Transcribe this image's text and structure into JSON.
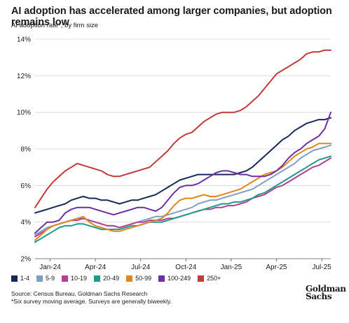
{
  "title": "AI adoption has accelerated among larger companies, but adoption remains low",
  "subtitle": "AI adoption rate*, by firm size",
  "source": "Source: Census Bureau, Goldman Sachs Research",
  "footnote": "*Six survey moving average. Surveys are generally biweekly.",
  "logo": {
    "line1": "Goldman",
    "line2": "Sachs"
  },
  "chart_data": {
    "type": "line",
    "ylim": [
      2,
      14
    ],
    "yticks": [
      "2%",
      "4%",
      "6%",
      "8%",
      "10%",
      "12%",
      "14%"
    ],
    "ytick_values": [
      2,
      4,
      6,
      8,
      10,
      12,
      14
    ],
    "xlim": [
      0,
      19.6
    ],
    "xticks": [
      "Jan-24",
      "Apr-24",
      "Jul-24",
      "Oct-24",
      "Jan-25",
      "Apr-25",
      "Jul-25"
    ],
    "xtick_positions": [
      1,
      4,
      7,
      10,
      13,
      16,
      19
    ],
    "grid": "horizontal",
    "legend_position": "bottom-left",
    "x": [
      0,
      0.4,
      0.8,
      1.2,
      1.6,
      2.0,
      2.4,
      2.8,
      3.2,
      3.6,
      4.0,
      4.4,
      4.8,
      5.2,
      5.6,
      6.0,
      6.4,
      6.8,
      7.2,
      7.6,
      8.0,
      8.4,
      8.8,
      9.2,
      9.6,
      10.0,
      10.4,
      10.8,
      11.2,
      11.6,
      12.0,
      12.4,
      12.8,
      13.2,
      13.6,
      14.0,
      14.4,
      14.8,
      15.2,
      15.6,
      16.0,
      16.4,
      16.8,
      17.2,
      17.6,
      18.0,
      18.4,
      18.8,
      19.2,
      19.6
    ],
    "series": [
      {
        "name": "1-4",
        "color": "#172a57",
        "values": [
          4.5,
          4.6,
          4.7,
          4.8,
          4.9,
          5.0,
          5.2,
          5.3,
          5.4,
          5.3,
          5.3,
          5.2,
          5.2,
          5.1,
          5.0,
          5.1,
          5.2,
          5.2,
          5.3,
          5.4,
          5.5,
          5.7,
          5.9,
          6.1,
          6.3,
          6.4,
          6.5,
          6.6,
          6.6,
          6.6,
          6.6,
          6.6,
          6.6,
          6.6,
          6.7,
          6.8,
          7.0,
          7.3,
          7.6,
          7.9,
          8.2,
          8.5,
          8.7,
          9.0,
          9.2,
          9.4,
          9.5,
          9.6,
          9.6,
          9.7
        ]
      },
      {
        "name": "5-9",
        "color": "#7d9ec9",
        "values": [
          3.3,
          3.5,
          3.7,
          3.8,
          3.9,
          4.0,
          4.1,
          4.2,
          4.2,
          4.1,
          4.0,
          3.9,
          3.8,
          3.8,
          3.7,
          3.8,
          3.9,
          4.0,
          4.1,
          4.2,
          4.3,
          4.3,
          4.4,
          4.5,
          4.6,
          4.7,
          4.8,
          5.0,
          5.1,
          5.2,
          5.2,
          5.3,
          5.4,
          5.5,
          5.6,
          5.7,
          5.8,
          6.0,
          6.2,
          6.4,
          6.6,
          6.8,
          7.0,
          7.2,
          7.5,
          7.7,
          7.9,
          8.0,
          8.1,
          8.2
        ]
      },
      {
        "name": "10-19",
        "color": "#b23f93",
        "values": [
          3.2,
          3.4,
          3.6,
          3.8,
          3.9,
          4.0,
          4.1,
          4.1,
          4.2,
          4.1,
          4.0,
          3.9,
          3.8,
          3.8,
          3.7,
          3.8,
          3.9,
          4.0,
          4.0,
          4.1,
          4.1,
          4.1,
          4.2,
          4.2,
          4.3,
          4.4,
          4.5,
          4.6,
          4.7,
          4.7,
          4.8,
          4.8,
          4.9,
          4.9,
          5.0,
          5.1,
          5.3,
          5.4,
          5.5,
          5.7,
          5.9,
          6.0,
          6.2,
          6.4,
          6.6,
          6.8,
          7.0,
          7.1,
          7.3,
          7.5
        ]
      },
      {
        "name": "20-49",
        "color": "#1e9b8a",
        "values": [
          2.9,
          3.1,
          3.3,
          3.5,
          3.7,
          3.8,
          3.8,
          3.9,
          3.9,
          3.8,
          3.7,
          3.6,
          3.6,
          3.6,
          3.6,
          3.7,
          3.8,
          3.8,
          3.9,
          4.0,
          4.0,
          4.0,
          4.1,
          4.2,
          4.3,
          4.4,
          4.5,
          4.6,
          4.7,
          4.8,
          4.9,
          5.0,
          5.0,
          5.1,
          5.1,
          5.2,
          5.3,
          5.5,
          5.6,
          5.8,
          6.0,
          6.2,
          6.4,
          6.6,
          6.8,
          7.0,
          7.2,
          7.4,
          7.5,
          7.6
        ]
      },
      {
        "name": "50-99",
        "color": "#e0861c",
        "values": [
          3.0,
          3.3,
          3.6,
          3.8,
          3.9,
          4.0,
          4.1,
          4.2,
          4.3,
          4.0,
          3.8,
          3.7,
          3.6,
          3.5,
          3.5,
          3.6,
          3.7,
          3.8,
          3.9,
          4.0,
          4.1,
          4.2,
          4.5,
          4.9,
          5.2,
          5.3,
          5.3,
          5.4,
          5.5,
          5.4,
          5.4,
          5.5,
          5.6,
          5.7,
          5.8,
          6.0,
          6.2,
          6.4,
          6.6,
          6.7,
          6.8,
          7.0,
          7.3,
          7.6,
          7.8,
          8.0,
          8.1,
          8.3,
          8.3,
          8.3
        ]
      },
      {
        "name": "100-249",
        "color": "#6e2fa0",
        "values": [
          3.4,
          3.7,
          4.0,
          4.0,
          4.1,
          4.5,
          4.7,
          4.8,
          4.8,
          4.8,
          4.7,
          4.6,
          4.5,
          4.4,
          4.5,
          4.6,
          4.7,
          4.8,
          4.8,
          4.7,
          4.6,
          4.8,
          5.2,
          5.6,
          5.9,
          6.0,
          6.0,
          6.1,
          6.3,
          6.5,
          6.7,
          6.8,
          6.8,
          6.7,
          6.6,
          6.6,
          6.5,
          6.5,
          6.5,
          6.6,
          6.8,
          7.1,
          7.5,
          7.8,
          8.0,
          8.3,
          8.5,
          8.7,
          9.1,
          10.0
        ]
      },
      {
        "name": "250+",
        "color": "#c23a3a",
        "values": [
          4.8,
          5.3,
          5.8,
          6.2,
          6.5,
          6.8,
          7.0,
          7.2,
          7.1,
          7.0,
          6.9,
          6.8,
          6.6,
          6.5,
          6.5,
          6.6,
          6.7,
          6.8,
          6.9,
          7.0,
          7.3,
          7.6,
          7.9,
          8.3,
          8.6,
          8.8,
          8.9,
          9.2,
          9.5,
          9.7,
          9.9,
          10.0,
          10.0,
          10.0,
          10.1,
          10.3,
          10.6,
          10.9,
          11.3,
          11.7,
          12.1,
          12.3,
          12.5,
          12.7,
          12.9,
          13.2,
          13.3,
          13.3,
          13.4,
          13.4
        ]
      }
    ]
  }
}
